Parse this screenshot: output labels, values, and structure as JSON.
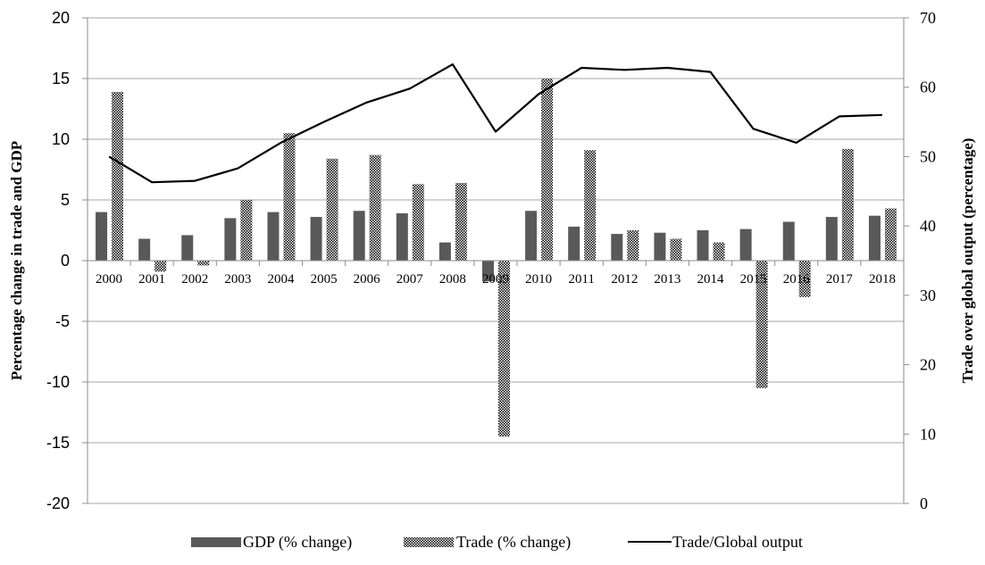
{
  "chart_data": {
    "type": "bar",
    "categories": [
      "2000",
      "2001",
      "2002",
      "2003",
      "2004",
      "2005",
      "2006",
      "2007",
      "2008",
      "2009",
      "2010",
      "2011",
      "2012",
      "2013",
      "2014",
      "2015",
      "2016",
      "2017",
      "2018"
    ],
    "series": [
      {
        "name": "GDP (% change)",
        "type": "bar",
        "axis": "left",
        "color": "#595959",
        "values": [
          4.0,
          1.8,
          2.1,
          3.5,
          4.0,
          3.6,
          4.1,
          3.9,
          1.5,
          -1.7,
          4.1,
          2.8,
          2.2,
          2.3,
          2.5,
          2.6,
          3.2,
          3.6,
          3.7
        ]
      },
      {
        "name": "Trade (% change)",
        "type": "bar",
        "axis": "left",
        "pattern": "dotted",
        "values": [
          13.9,
          -0.9,
          -0.4,
          5.0,
          10.5,
          8.4,
          8.7,
          6.3,
          6.4,
          -14.5,
          15.0,
          9.1,
          2.5,
          1.8,
          1.5,
          -10.5,
          -3.0,
          9.2,
          4.3
        ]
      },
      {
        "name": "Trade/Global output",
        "type": "line",
        "axis": "right",
        "color": "#000000",
        "values": [
          50.0,
          46.3,
          46.5,
          48.3,
          52.0,
          55.0,
          57.8,
          59.8,
          63.3,
          53.6,
          59.0,
          62.8,
          62.5,
          62.8,
          62.2,
          54.0,
          52.0,
          55.8,
          56.0
        ]
      }
    ],
    "ylabel": "Percentage change in trade and GDP",
    "ylabel_right": "Trade over global output (percentage)",
    "ylim": [
      -20,
      20
    ],
    "ylim_right": [
      0,
      70
    ],
    "yticks": [
      -20,
      -15,
      -10,
      -5,
      0,
      5,
      10,
      15,
      20
    ],
    "yticks_right": [
      0,
      10,
      20,
      30,
      40,
      50,
      60,
      70
    ],
    "grid": true,
    "legend_position": "bottom"
  }
}
